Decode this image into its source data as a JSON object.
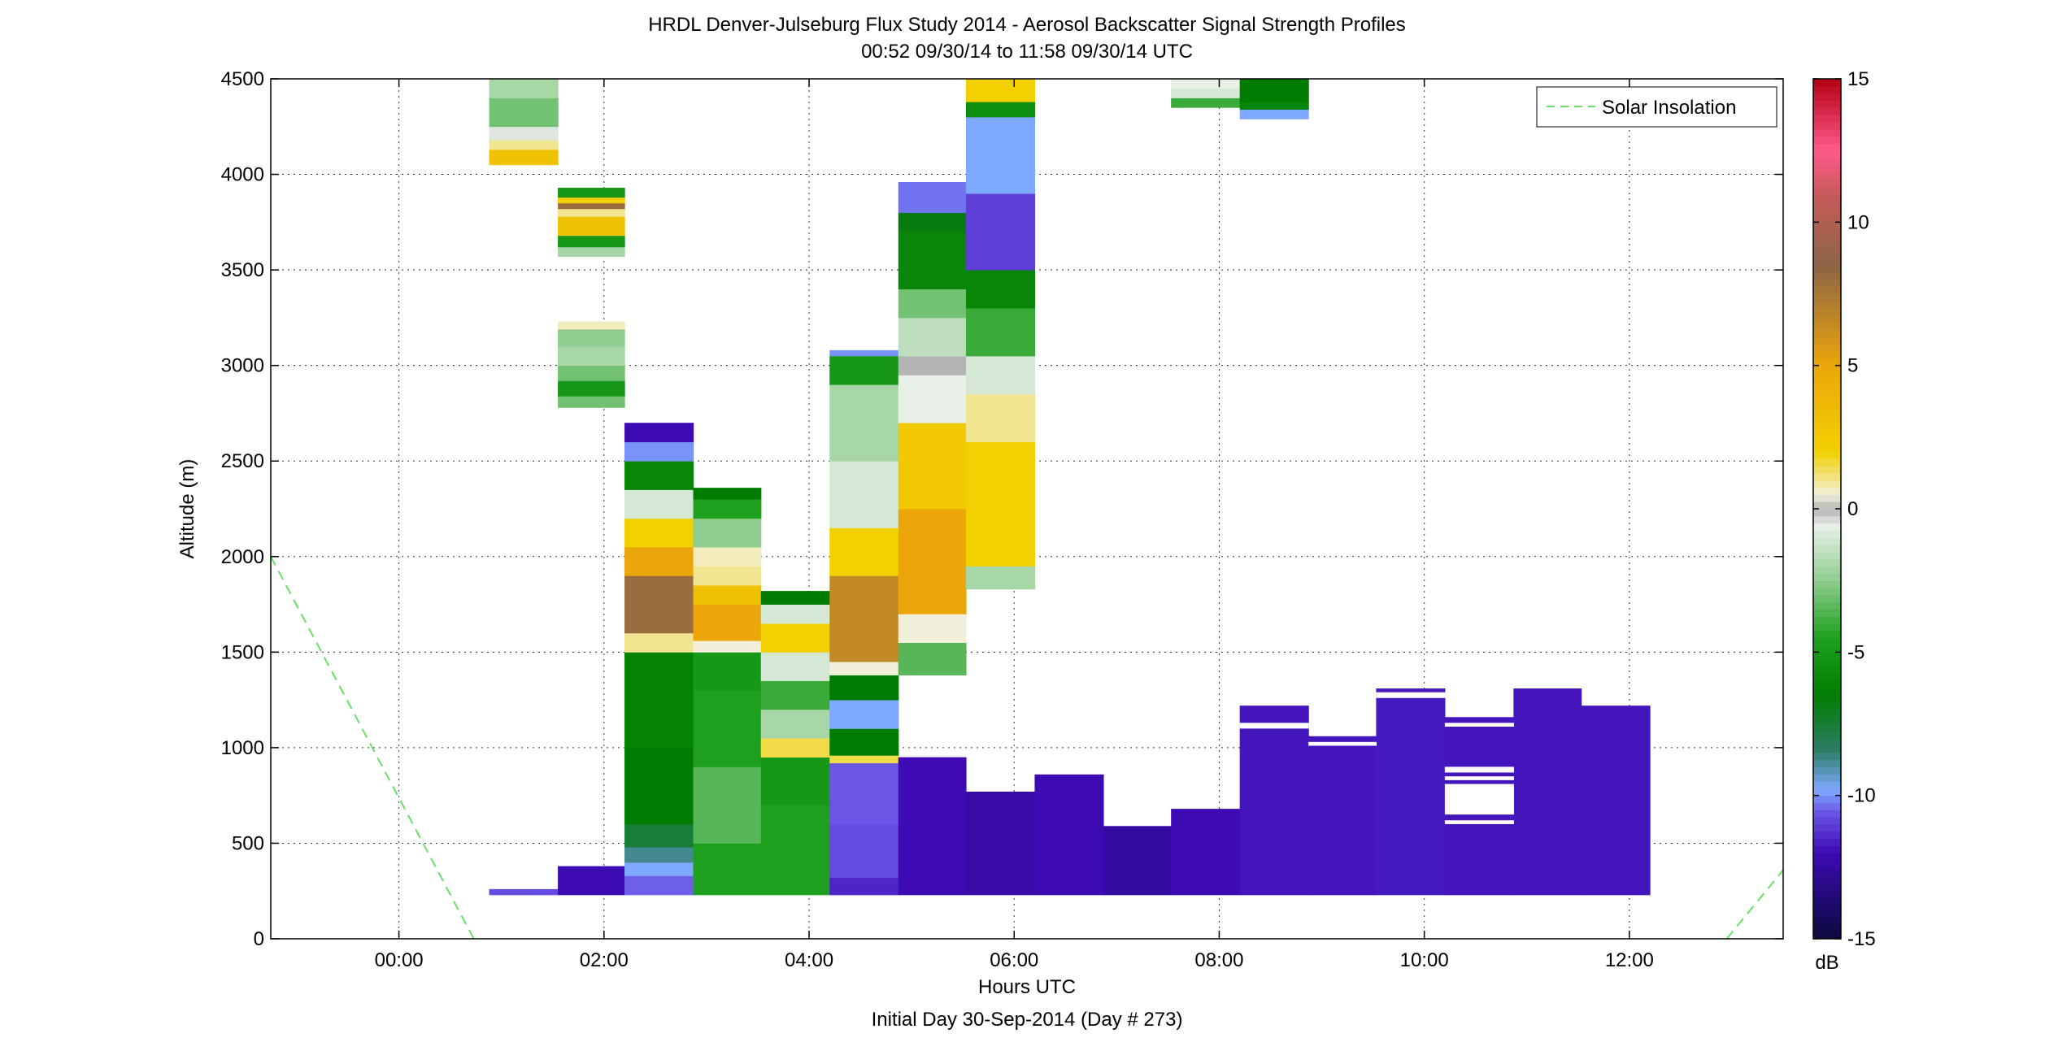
{
  "figure": {
    "title_line1": "HRDL Denver-Julseburg Flux Study 2014 - Aerosol Backscatter Signal Strength Profiles",
    "title_line2": "00:52 09/30/14 to 11:58 09/30/14  UTC",
    "footer": "Initial Day 30-Sep-2014 (Day # 273)"
  },
  "chart_data": {
    "type": "heatmap",
    "xlabel": "Hours UTC",
    "ylabel": "Altitude (m)",
    "xlim": [
      -1.25,
      13.5
    ],
    "ylim": [
      0,
      4500
    ],
    "x_ticks": [
      0,
      2,
      4,
      6,
      8,
      10,
      12
    ],
    "x_tick_labels": [
      "00:00",
      "02:00",
      "04:00",
      "06:00",
      "08:00",
      "10:00",
      "12:00"
    ],
    "y_ticks": [
      0,
      500,
      1000,
      1500,
      2000,
      2500,
      3000,
      3500,
      4000,
      4500
    ],
    "grid": true,
    "legend": {
      "position": "top-right",
      "entries": [
        "Solar Insolation"
      ]
    },
    "colorbar": {
      "label": "dB",
      "range": [
        -15,
        15
      ],
      "ticks": [
        -15,
        -10,
        -5,
        0,
        5,
        10,
        15
      ],
      "stops": [
        {
          "v": -15,
          "c": "#0a0a3c"
        },
        {
          "v": -12,
          "c": "#3d0ab4"
        },
        {
          "v": -10.6,
          "c": "#6b55e6"
        },
        {
          "v": -9.8,
          "c": "#7fa8ff"
        },
        {
          "v": -8.4,
          "c": "#2d7d64"
        },
        {
          "v": -6.5,
          "c": "#007d00"
        },
        {
          "v": -4.5,
          "c": "#1ea01e"
        },
        {
          "v": -2.5,
          "c": "#8fcc8f"
        },
        {
          "v": -0.6,
          "c": "#e8f0e8"
        },
        {
          "v": 0,
          "c": "#b4b4b4"
        },
        {
          "v": 0.5,
          "c": "#f2f0da"
        },
        {
          "v": 2,
          "c": "#f2d000"
        },
        {
          "v": 5,
          "c": "#eaa60a"
        },
        {
          "v": 8.5,
          "c": "#8c6446"
        },
        {
          "v": 11,
          "c": "#c85a5a"
        },
        {
          "v": 12.5,
          "c": "#ff5a8c"
        },
        {
          "v": 15,
          "c": "#b40014"
        }
      ]
    },
    "solar_insolation": {
      "name": "Solar Insolation",
      "color": "#66e066",
      "segments": [
        [
          [
            -1.25,
            2000
          ],
          [
            0.73,
            0
          ]
        ],
        [
          [
            12.95,
            0
          ],
          [
            13.5,
            360
          ]
        ]
      ]
    },
    "profiles": [
      {
        "x0": 0.88,
        "x1": 1.55,
        "layers": [
          [
            230,
            260,
            -10.8
          ],
          [
            4050,
            4130,
            3
          ],
          [
            4130,
            4180,
            1
          ],
          [
            4180,
            4250,
            -0.5
          ],
          [
            4250,
            4400,
            -3
          ],
          [
            4400,
            4500,
            -2
          ]
        ]
      },
      {
        "x0": 1.55,
        "x1": 2.2,
        "layers": [
          [
            230,
            380,
            -12
          ],
          [
            3570,
            3620,
            -2
          ],
          [
            3620,
            3680,
            -5
          ],
          [
            3680,
            3780,
            3
          ],
          [
            3780,
            3820,
            1
          ],
          [
            3820,
            3850,
            8
          ],
          [
            3850,
            3880,
            2
          ],
          [
            3880,
            3930,
            -5
          ],
          [
            2780,
            2840,
            -3
          ],
          [
            2840,
            2920,
            -5
          ],
          [
            2920,
            3000,
            -3
          ],
          [
            3000,
            3100,
            -2
          ],
          [
            3100,
            3190,
            -2.5
          ],
          [
            3190,
            3230,
            0.7
          ]
        ]
      },
      {
        "x0": 2.2,
        "x1": 2.87,
        "layers": [
          [
            230,
            330,
            -10.5
          ],
          [
            330,
            400,
            -9.8
          ],
          [
            400,
            480,
            -8.8
          ],
          [
            480,
            600,
            -7.5
          ],
          [
            600,
            1000,
            -6.5
          ],
          [
            1000,
            1500,
            -6.2
          ],
          [
            1500,
            1600,
            1
          ],
          [
            1600,
            1900,
            8
          ],
          [
            1900,
            2050,
            5
          ],
          [
            2050,
            2200,
            2
          ],
          [
            2200,
            2350,
            -1
          ],
          [
            2350,
            2500,
            -6
          ],
          [
            2500,
            2600,
            -10
          ],
          [
            2600,
            2700,
            -12
          ]
        ]
      },
      {
        "x0": 2.87,
        "x1": 3.53,
        "layers": [
          [
            230,
            500,
            -4.5
          ],
          [
            500,
            900,
            -3.5
          ],
          [
            900,
            1300,
            -4.5
          ],
          [
            1300,
            1500,
            -5
          ],
          [
            1500,
            1560,
            0.5
          ],
          [
            1560,
            1750,
            5
          ],
          [
            1750,
            1850,
            3
          ],
          [
            1850,
            1950,
            1
          ],
          [
            1950,
            2050,
            0.7
          ],
          [
            2050,
            2200,
            -2.5
          ],
          [
            2200,
            2300,
            -4.5
          ],
          [
            2300,
            2360,
            -6.5
          ]
        ]
      },
      {
        "x0": 3.53,
        "x1": 4.2,
        "layers": [
          [
            230,
            700,
            -4.5
          ],
          [
            700,
            950,
            -5
          ],
          [
            950,
            1050,
            1.5
          ],
          [
            1050,
            1200,
            -2
          ],
          [
            1200,
            1350,
            -4
          ],
          [
            1350,
            1500,
            -1
          ],
          [
            1500,
            1650,
            2
          ],
          [
            1650,
            1750,
            -1
          ],
          [
            1750,
            1820,
            -6.5
          ]
        ]
      },
      {
        "x0": 4.2,
        "x1": 4.87,
        "layers": [
          [
            230,
            320,
            -11.5
          ],
          [
            320,
            600,
            -10.8
          ],
          [
            600,
            920,
            -10.6
          ],
          [
            920,
            960,
            1.5
          ],
          [
            960,
            1100,
            -6.5
          ],
          [
            1100,
            1250,
            -9.8
          ],
          [
            1250,
            1380,
            -6.5
          ],
          [
            1380,
            1450,
            0.5
          ],
          [
            1450,
            1900,
            6.5
          ],
          [
            1900,
            2150,
            2
          ],
          [
            2150,
            2500,
            -1
          ],
          [
            2500,
            2900,
            -2
          ],
          [
            2900,
            3050,
            -5
          ],
          [
            3050,
            3080,
            -10
          ]
        ]
      },
      {
        "x0": 4.87,
        "x1": 5.53,
        "layers": [
          [
            230,
            950,
            -12
          ],
          [
            1380,
            1550,
            -3.5
          ],
          [
            1550,
            1700,
            0.5
          ],
          [
            1700,
            2250,
            5
          ],
          [
            2250,
            2700,
            2.5
          ],
          [
            2700,
            2950,
            -0.6
          ],
          [
            2950,
            3050,
            0
          ],
          [
            3050,
            3250,
            -1.5
          ],
          [
            3250,
            3400,
            -3
          ],
          [
            3400,
            3700,
            -6
          ],
          [
            3700,
            3800,
            -6.8
          ],
          [
            3800,
            3960,
            -10.3
          ]
        ]
      },
      {
        "x0": 5.53,
        "x1": 6.2,
        "layers": [
          [
            230,
            770,
            -12.3
          ],
          [
            1830,
            1950,
            -2
          ],
          [
            1950,
            2600,
            2
          ],
          [
            2600,
            2850,
            1
          ],
          [
            2850,
            3050,
            -1
          ],
          [
            3050,
            3300,
            -4
          ],
          [
            3300,
            3500,
            -6
          ],
          [
            3500,
            3900,
            -11
          ],
          [
            3900,
            4300,
            -9.8
          ],
          [
            4300,
            4380,
            -5.5
          ],
          [
            4380,
            4500,
            2
          ]
        ]
      },
      {
        "x0": 6.2,
        "x1": 6.87,
        "layers": [
          [
            230,
            860,
            -12
          ]
        ]
      },
      {
        "x0": 6.87,
        "x1": 7.53,
        "layers": [
          [
            230,
            590,
            -12.5
          ]
        ]
      },
      {
        "x0": 7.53,
        "x1": 8.2,
        "layers": [
          [
            230,
            680,
            -12
          ],
          [
            4350,
            4400,
            -4
          ],
          [
            4400,
            4450,
            -1
          ],
          [
            4450,
            4500,
            -0.6
          ]
        ]
      },
      {
        "x0": 8.2,
        "x1": 8.87,
        "layers": [
          [
            230,
            1220,
            -11.8
          ],
          [
            4290,
            4340,
            -9.8
          ],
          [
            4340,
            4380,
            -6
          ],
          [
            4380,
            4500,
            -6.5
          ]
        ]
      },
      {
        "x0": 8.87,
        "x1": 9.53,
        "layers": [
          [
            230,
            1060,
            -11.8
          ]
        ]
      },
      {
        "x0": 9.53,
        "x1": 10.2,
        "layers": [
          [
            230,
            1310,
            -11.7
          ]
        ]
      },
      {
        "x0": 10.2,
        "x1": 10.87,
        "layers": [
          [
            230,
            1160,
            -11.8
          ]
        ]
      },
      {
        "x0": 10.87,
        "x1": 11.53,
        "layers": [
          [
            230,
            1310,
            -11.8
          ]
        ]
      },
      {
        "x0": 11.53,
        "x1": 12.2,
        "layers": [
          [
            230,
            1220,
            -11.8
          ]
        ]
      }
    ],
    "gaps": [
      {
        "x0": 8.2,
        "x1": 8.87,
        "y0": 1100,
        "y1": 1130
      },
      {
        "x0": 8.87,
        "x1": 9.53,
        "y0": 1010,
        "y1": 1030
      },
      {
        "x0": 9.53,
        "x1": 10.2,
        "y0": 1260,
        "y1": 1290
      },
      {
        "x0": 10.2,
        "x1": 10.87,
        "y0": 1110,
        "y1": 1130
      },
      {
        "x0": 10.2,
        "x1": 10.87,
        "y0": 870,
        "y1": 900
      },
      {
        "x0": 10.2,
        "x1": 10.87,
        "y0": 830,
        "y1": 850
      },
      {
        "x0": 10.2,
        "x1": 10.87,
        "y0": 650,
        "y1": 810
      },
      {
        "x0": 10.2,
        "x1": 10.87,
        "y0": 600,
        "y1": 620
      }
    ]
  }
}
